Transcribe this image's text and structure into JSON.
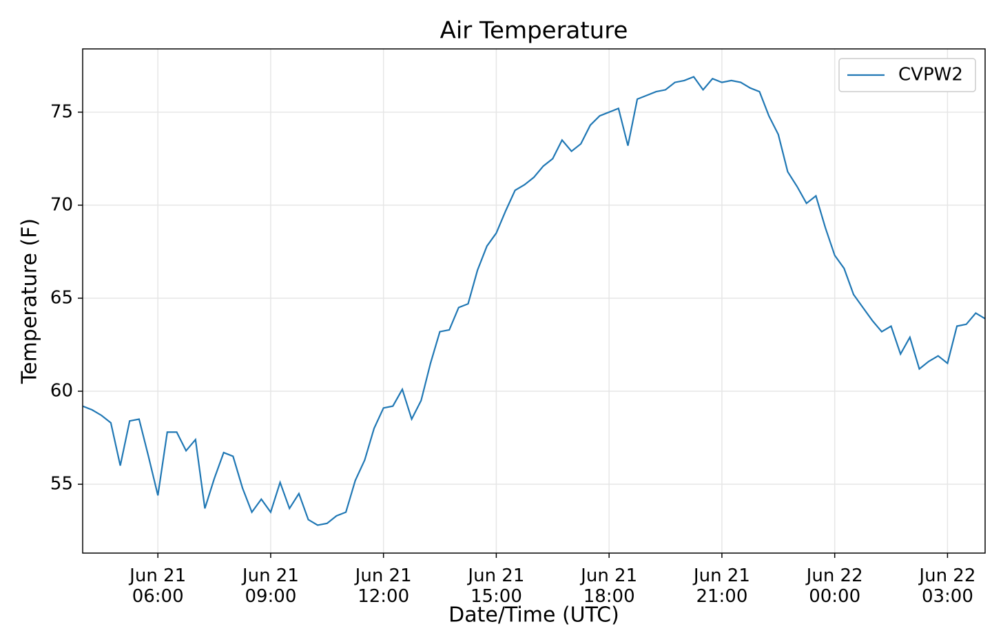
{
  "chart_data": {
    "type": "line",
    "title": "Air Temperature",
    "x_label": "Date/Time (UTC)",
    "y_label": "Temperature (F)",
    "x": [
      "Jun 21 04:00",
      "Jun 21 04:15",
      "Jun 21 04:30",
      "Jun 21 04:45",
      "Jun 21 05:00",
      "Jun 21 05:15",
      "Jun 21 05:30",
      "Jun 21 05:45",
      "Jun 21 06:00",
      "Jun 21 06:15",
      "Jun 21 06:30",
      "Jun 21 06:45",
      "Jun 21 07:00",
      "Jun 21 07:15",
      "Jun 21 07:30",
      "Jun 21 07:45",
      "Jun 21 08:00",
      "Jun 21 08:15",
      "Jun 21 08:30",
      "Jun 21 08:45",
      "Jun 21 09:00",
      "Jun 21 09:15",
      "Jun 21 09:30",
      "Jun 21 09:45",
      "Jun 21 10:00",
      "Jun 21 10:15",
      "Jun 21 10:30",
      "Jun 21 10:45",
      "Jun 21 11:00",
      "Jun 21 11:15",
      "Jun 21 11:30",
      "Jun 21 11:45",
      "Jun 21 12:00",
      "Jun 21 12:15",
      "Jun 21 12:30",
      "Jun 21 12:45",
      "Jun 21 13:00",
      "Jun 21 13:15",
      "Jun 21 13:30",
      "Jun 21 13:45",
      "Jun 21 14:00",
      "Jun 21 14:15",
      "Jun 21 14:30",
      "Jun 21 14:45",
      "Jun 21 15:00",
      "Jun 21 15:15",
      "Jun 21 15:30",
      "Jun 21 15:45",
      "Jun 21 16:00",
      "Jun 21 16:15",
      "Jun 21 16:30",
      "Jun 21 16:45",
      "Jun 21 17:00",
      "Jun 21 17:15",
      "Jun 21 17:30",
      "Jun 21 17:45",
      "Jun 21 18:00",
      "Jun 21 18:15",
      "Jun 21 18:30",
      "Jun 21 18:45",
      "Jun 21 19:00",
      "Jun 21 19:15",
      "Jun 21 19:30",
      "Jun 21 19:45",
      "Jun 21 20:00",
      "Jun 21 20:15",
      "Jun 21 20:30",
      "Jun 21 20:45",
      "Jun 21 21:00",
      "Jun 21 21:15",
      "Jun 21 21:30",
      "Jun 21 21:45",
      "Jun 21 22:00",
      "Jun 21 22:15",
      "Jun 21 22:30",
      "Jun 21 22:45",
      "Jun 21 23:00",
      "Jun 21 23:15",
      "Jun 21 23:30",
      "Jun 21 23:45",
      "Jun 22 00:00",
      "Jun 22 00:15",
      "Jun 22 00:30",
      "Jun 22 00:45",
      "Jun 22 01:00",
      "Jun 22 01:15",
      "Jun 22 01:30",
      "Jun 22 01:45",
      "Jun 22 02:00",
      "Jun 22 02:15",
      "Jun 22 02:30",
      "Jun 22 02:45",
      "Jun 22 03:00",
      "Jun 22 03:15",
      "Jun 22 03:30",
      "Jun 22 03:45",
      "Jun 22 04:00"
    ],
    "series": [
      {
        "name": "CVPW2",
        "color": "#1f77b4",
        "values": [
          59.2,
          59.0,
          58.7,
          58.3,
          56.0,
          58.4,
          58.5,
          56.5,
          54.4,
          57.8,
          57.8,
          56.8,
          57.4,
          53.7,
          55.3,
          56.7,
          56.5,
          54.8,
          53.5,
          54.2,
          53.5,
          55.1,
          53.7,
          54.5,
          53.1,
          52.8,
          52.9,
          53.3,
          53.5,
          55.2,
          56.3,
          58.0,
          59.1,
          59.2,
          60.1,
          58.5,
          59.5,
          61.5,
          63.2,
          63.3,
          64.5,
          64.7,
          66.5,
          67.8,
          68.5,
          69.7,
          70.8,
          71.1,
          71.5,
          72.1,
          72.5,
          73.5,
          72.9,
          73.3,
          74.3,
          74.8,
          75.0,
          75.2,
          73.2,
          75.7,
          75.9,
          76.1,
          76.2,
          76.6,
          76.7,
          76.9,
          76.2,
          76.8,
          76.6,
          76.7,
          76.6,
          76.3,
          76.1,
          74.8,
          73.8,
          71.8,
          71.0,
          70.1,
          70.5,
          68.8,
          67.3,
          66.6,
          65.2,
          64.5,
          63.8,
          63.2,
          63.5,
          62.0,
          62.9,
          61.2,
          61.6,
          61.9,
          61.5,
          63.5,
          63.6,
          64.2,
          63.9
        ]
      }
    ],
    "xlim": [
      "Jun 21 04:00",
      "Jun 22 04:00"
    ],
    "xticks": [
      {
        "value": "Jun 21 06:00",
        "label": "Jun 21\n06:00"
      },
      {
        "value": "Jun 21 09:00",
        "label": "Jun 21\n09:00"
      },
      {
        "value": "Jun 21 12:00",
        "label": "Jun 21\n12:00"
      },
      {
        "value": "Jun 21 15:00",
        "label": "Jun 21\n15:00"
      },
      {
        "value": "Jun 21 18:00",
        "label": "Jun 21\n18:00"
      },
      {
        "value": "Jun 21 21:00",
        "label": "Jun 21\n21:00"
      },
      {
        "value": "Jun 22 00:00",
        "label": "Jun 22\n00:00"
      },
      {
        "value": "Jun 22 03:00",
        "label": "Jun 22\n03:00"
      }
    ],
    "ylim": [
      51.3,
      78.4
    ],
    "yticks": [
      55,
      60,
      65,
      70,
      75
    ],
    "grid": true,
    "legend": "upper right"
  }
}
